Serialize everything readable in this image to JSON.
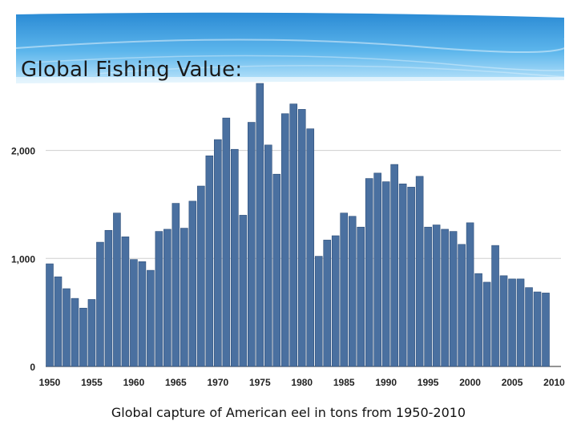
{
  "slide": {
    "title": "Global Fishing Value:",
    "caption": "Global capture of American eel in tons from 1950-2010"
  },
  "colors": {
    "bar": "#4a70a0",
    "bar_edge": "#2e4f7a",
    "grid": "#cfcfcf",
    "banner_dark": "#2d8fd6",
    "banner_light": "#9fd6f7"
  },
  "chart_data": {
    "type": "bar",
    "title": "",
    "xlabel": "",
    "ylabel": "",
    "ylim": [
      0,
      2650
    ],
    "grid": true,
    "y_ticks": [
      0,
      1000,
      2000
    ],
    "y_tick_labels": [
      "0",
      "1,000",
      "2,000"
    ],
    "x_tick_labels": [
      "1950",
      "1955",
      "1960",
      "1965",
      "1970",
      "1975",
      "1980",
      "1985",
      "1990",
      "1995",
      "2000",
      "2005",
      "2010"
    ],
    "categories": [
      1950,
      1951,
      1952,
      1953,
      1954,
      1955,
      1956,
      1957,
      1958,
      1959,
      1960,
      1961,
      1962,
      1963,
      1964,
      1965,
      1966,
      1967,
      1968,
      1969,
      1970,
      1971,
      1972,
      1973,
      1974,
      1975,
      1976,
      1977,
      1978,
      1979,
      1980,
      1981,
      1982,
      1983,
      1984,
      1985,
      1986,
      1987,
      1988,
      1989,
      1990,
      1991,
      1992,
      1993,
      1994,
      1995,
      1996,
      1997,
      1998,
      1999,
      2000,
      2001,
      2002,
      2003,
      2004,
      2005,
      2006,
      2007,
      2008,
      2009
    ],
    "values": [
      950,
      830,
      720,
      630,
      540,
      620,
      1150,
      1260,
      1420,
      1200,
      990,
      970,
      890,
      1250,
      1270,
      1510,
      1280,
      1530,
      1670,
      1950,
      2100,
      2300,
      2010,
      1400,
      2260,
      2620,
      2050,
      1780,
      2340,
      2430,
      2380,
      2200,
      1020,
      1170,
      1210,
      1420,
      1390,
      1290,
      1740,
      1790,
      1710,
      1870,
      1690,
      1660,
      1760,
      1290,
      1310,
      1270,
      1250,
      1130,
      1330,
      860,
      780,
      1120,
      840,
      810,
      810,
      730,
      690,
      680
    ]
  }
}
